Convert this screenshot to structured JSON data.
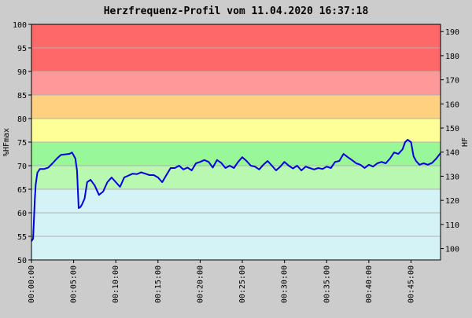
{
  "chart_data": {
    "type": "line",
    "title": "Herzfrequenz-Profil vom 11.04.2020 16:37:18",
    "ylabel_left": "%HFmax",
    "ylabel_right": "HF",
    "xlabel": "",
    "xlim": [
      0,
      48.5
    ],
    "ylim": [
      50,
      100
    ],
    "ylim_right": [
      95.3,
      193
    ],
    "grid": true,
    "legend": "none",
    "x_ticks": [
      {
        "value": 0,
        "label": "00:00:00"
      },
      {
        "value": 5,
        "label": "00:05:00"
      },
      {
        "value": 10,
        "label": "00:10:00"
      },
      {
        "value": 15,
        "label": "00:15:00"
      },
      {
        "value": 20,
        "label": "00:20:00"
      },
      {
        "value": 25,
        "label": "00:25:00"
      },
      {
        "value": 30,
        "label": "00:30:00"
      },
      {
        "value": 35,
        "label": "00:35:00"
      },
      {
        "value": 40,
        "label": "00:40:00"
      },
      {
        "value": 45,
        "label": "00:45:00"
      }
    ],
    "y_ticks_left": [
      "50",
      "55",
      "60",
      "65",
      "70",
      "75",
      "80",
      "85",
      "90",
      "95",
      "100"
    ],
    "y_ticks_right": [
      "100",
      "110",
      "120",
      "130",
      "140",
      "150",
      "160",
      "170",
      "180",
      "190"
    ],
    "zones": [
      {
        "from": 50,
        "to": 65,
        "color": "#d3f3f7"
      },
      {
        "from": 65,
        "to": 70,
        "color": "#b8f8b0"
      },
      {
        "from": 70,
        "to": 75,
        "color": "#98f898"
      },
      {
        "from": 75,
        "to": 80,
        "color": "#ffff98"
      },
      {
        "from": 80,
        "to": 85,
        "color": "#ffd080"
      },
      {
        "from": 85,
        "to": 90,
        "color": "#ff9898"
      },
      {
        "from": 90,
        "to": 100,
        "color": "#ff6868"
      }
    ],
    "line_color": "#0000dd",
    "series": [
      {
        "x": [
          0,
          0.2,
          0.4,
          0.5,
          0.7,
          1.0,
          1.5,
          2.0,
          2.5,
          3.0,
          3.5,
          4.0,
          4.5,
          4.8,
          5.0,
          5.2,
          5.4,
          5.6,
          5.8,
          6.0,
          6.3,
          6.6,
          7.0,
          7.5,
          8.0,
          8.5,
          9.0,
          9.5,
          10.0,
          10.5,
          11.0,
          12.0,
          12.5,
          13.0,
          13.5,
          14.0,
          14.5,
          15.0,
          15.5,
          16.0,
          16.5,
          17.0,
          17.5,
          18.0,
          18.5,
          19.0,
          19.5,
          20.0,
          20.5,
          21.0,
          21.5,
          22.0,
          22.5,
          23.0,
          23.5,
          24.0,
          24.5,
          25.0,
          25.5,
          26.0,
          26.5,
          27.0,
          27.5,
          28.0,
          28.5,
          29.0,
          29.5,
          30.0,
          30.5,
          31.0,
          31.5,
          32.0,
          32.5,
          33.0,
          33.5,
          34.0,
          34.5,
          35.0,
          35.5,
          36.0,
          36.5,
          37.0,
          37.5,
          38.0,
          38.5,
          39.0,
          39.5,
          40.0,
          40.5,
          41.0,
          41.5,
          42.0,
          42.5,
          43.0,
          43.5,
          44.0,
          44.3,
          44.6,
          45.0,
          45.3,
          45.6,
          46.0,
          46.5,
          47.0,
          47.5,
          48.0,
          48.5
        ],
        "y": [
          54,
          54.5,
          63,
          66,
          68.5,
          69.3,
          69.3,
          69.6,
          70.5,
          71.5,
          72.3,
          72.4,
          72.5,
          72.8,
          72.2,
          71.5,
          69,
          61,
          61.2,
          61.8,
          63,
          66.5,
          67,
          65.8,
          63.8,
          64.5,
          66.5,
          67.5,
          66.5,
          65.5,
          67.5,
          68.3,
          68.2,
          68.6,
          68.3,
          68,
          68,
          67.5,
          66.5,
          68,
          69.5,
          69.5,
          70,
          69.2,
          69.6,
          69,
          70.5,
          70.8,
          71.2,
          70.8,
          69.6,
          71.2,
          70.6,
          69.5,
          70,
          69.5,
          70.8,
          71.8,
          71,
          70,
          69.8,
          69.2,
          70.2,
          71,
          70,
          69,
          69.8,
          70.8,
          70,
          69.4,
          70,
          69,
          69.8,
          69.5,
          69.2,
          69.5,
          69.3,
          69.8,
          69.5,
          70.8,
          71,
          72.5,
          71.8,
          71.2,
          70.5,
          70.2,
          69.5,
          70.2,
          69.8,
          70.5,
          70.8,
          70.5,
          71.5,
          72.8,
          72.5,
          73.5,
          75,
          75.5,
          75,
          72,
          71,
          70.2,
          70.5,
          70.2,
          70.6,
          71.5,
          72.7
        ]
      }
    ]
  }
}
